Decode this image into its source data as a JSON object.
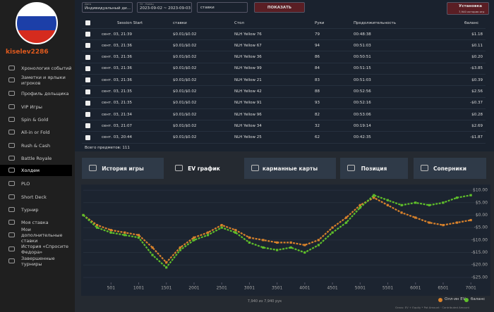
{
  "sidebar": {
    "username": "kiselev2286",
    "menu": [
      "Хронология событий",
      "Заметки и ярлыки игроков",
      "Профиль дольщика",
      "VIP Игры",
      "Spin & Gold",
      "All-in or Fold",
      "Rush & Cash",
      "Battle Royale",
      "Холдем",
      "PLO",
      "Short Deck",
      "Турнир",
      "Моя ставка",
      "Мои дополнительные ставки",
      "История «Спросите Федора»",
      "Завершенные турниры"
    ],
    "active": "Холдем"
  },
  "filters": {
    "type_label": "Дата",
    "type_value": "Индивидуальный ди...",
    "range_label": "От - Конец",
    "range_value": "2023-09-02 ~ 2023-09-03",
    "stakes": "ставки",
    "show": "ПОКАЗАТЬ",
    "install": "Установка",
    "install_sub": "7,940 история игр"
  },
  "table": {
    "columns": [
      "Session Start",
      "ставки",
      "Стол",
      "Руки",
      "Продолжительность",
      "баланс"
    ],
    "rows": [
      [
        "сент. 03, 21:39",
        "$0.01/$0.02",
        "NLH Yellow 76",
        "79",
        "00:48:38",
        "$1.18"
      ],
      [
        "сент. 03, 21:36",
        "$0.01/$0.02",
        "NLH Yellow 67",
        "94",
        "00:51:03",
        "$0.11"
      ],
      [
        "сент. 03, 21:36",
        "$0.01/$0.02",
        "NLH Yellow 36",
        "86",
        "00:50:51",
        "$0.20"
      ],
      [
        "сент. 03, 21:36",
        "$0.01/$0.02",
        "NLH Yellow 99",
        "84",
        "00:51:15",
        "-$3.85"
      ],
      [
        "сент. 03, 21:36",
        "$0.01/$0.02",
        "NLH Yellow 21",
        "83",
        "00:51:03",
        "$0.39"
      ],
      [
        "сент. 03, 21:35",
        "$0.01/$0.02",
        "NLH Yellow 42",
        "88",
        "00:52:56",
        "$2.56"
      ],
      [
        "сент. 03, 21:35",
        "$0.01/$0.02",
        "NLH Yellow 91",
        "93",
        "00:52:16",
        "-$0.37"
      ],
      [
        "сент. 03, 21:34",
        "$0.01/$0.02",
        "NLH Yellow 96",
        "82",
        "00:53:06",
        "$0.28"
      ],
      [
        "сент. 03, 21:07",
        "$0.01/$0.02",
        "NLH Yellow 34",
        "32",
        "00:19:14",
        "$2.69"
      ],
      [
        "сент. 03, 20:44",
        "$0.01/$0.02",
        "NLH Yellow 25",
        "62",
        "00:42:35",
        "-$1.87"
      ]
    ],
    "total": "Всего предметов: 111"
  },
  "tabs": [
    "История игры",
    "EV график",
    "карманные карты",
    "Позиция",
    "Соперники"
  ],
  "active_tab": "EV график",
  "chart_data": {
    "type": "line",
    "x": [
      0,
      250,
      500,
      750,
      1000,
      1250,
      1500,
      1750,
      2000,
      2250,
      2500,
      2750,
      3000,
      3250,
      3500,
      3750,
      4000,
      4250,
      4500,
      4750,
      5000,
      5250,
      5500,
      5750,
      6000,
      6250,
      6500,
      6750,
      7000
    ],
    "series": [
      {
        "name": "Олл-ин EV",
        "color": "#d9822b",
        "values": [
          0,
          -4,
          -6,
          -7,
          -8,
          -13,
          -19,
          -13,
          -9,
          -7,
          -4,
          -6,
          -9,
          -10,
          -11,
          -11,
          -12,
          -10,
          -5,
          -1,
          4,
          7,
          4,
          1,
          -1,
          -3,
          -4,
          -3,
          -2
        ]
      },
      {
        "name": "баланс",
        "color": "#5fbf2a",
        "values": [
          0,
          -5,
          -7,
          -8,
          -9,
          -16,
          -21,
          -14,
          -10,
          -8,
          -5,
          -7,
          -11,
          -13,
          -14,
          -13,
          -15,
          -12,
          -7,
          -3,
          3,
          8,
          6,
          4,
          5,
          4,
          5,
          7,
          8
        ]
      }
    ],
    "xlim": [
      0,
      7100
    ],
    "xticks": [
      501,
      1001,
      1501,
      2001,
      2501,
      3001,
      3501,
      4001,
      4501,
      5001,
      5501,
      6001,
      6501,
      7001
    ],
    "ylim": [
      -27,
      12
    ],
    "yticks": [
      {
        "value": 10,
        "label": "$10.00"
      },
      {
        "value": 5,
        "label": "$5.00"
      },
      {
        "value": 0,
        "label": "$0.00"
      },
      {
        "value": -5,
        "label": "-$5.00"
      },
      {
        "value": -10,
        "label": "-$10.00"
      },
      {
        "value": -15,
        "label": "-$15.00"
      },
      {
        "value": -20,
        "label": "-$20.00"
      },
      {
        "value": -25,
        "label": "-$25.00"
      }
    ],
    "footer": "7,940 из 7,940 рук",
    "note": "Graus: EV + Equity * Pot Amount · Contributed Amount"
  }
}
